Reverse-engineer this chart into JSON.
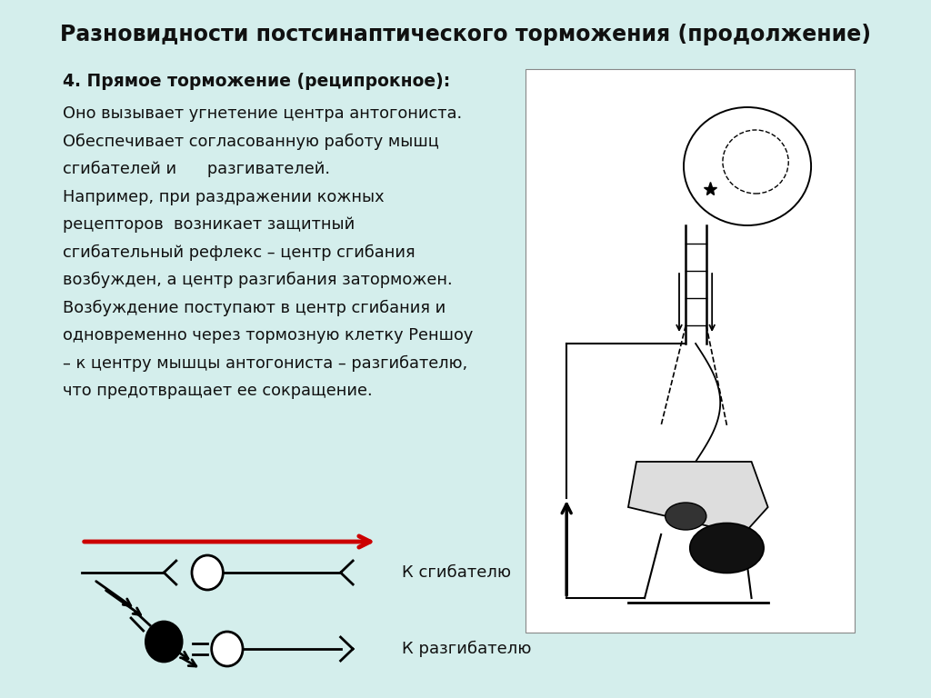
{
  "title": "Разновидности постсинаптического торможения (продолжение)",
  "bg_color": "#d4eeec",
  "title_fontsize": 17,
  "heading": "4. Прямое торможение (реципрокное):",
  "body_text": [
    "Оно вызывает угнетение центра антогониста.",
    "Обеспечивает согласованную работу мышц",
    "сгибателей и      разгивателей.",
    "Например, при раздражении кожных",
    "рецепторов  возникает защитный",
    "сгибательный рефлекс – центр сгибания",
    "возбужден, а центр разгибания заторможен.",
    "Возбуждение поступают в центр сгибания и",
    "одновременно через тормозную клетку Реншоу",
    "– к центру мышцы антогониста – разгибателю,",
    "что предотвращает ее сокращение."
  ],
  "label_flexor": "К сгибателю",
  "label_extensor": "К разгибателю",
  "text_color": "#111111",
  "red_arrow_color": "#cc0000"
}
